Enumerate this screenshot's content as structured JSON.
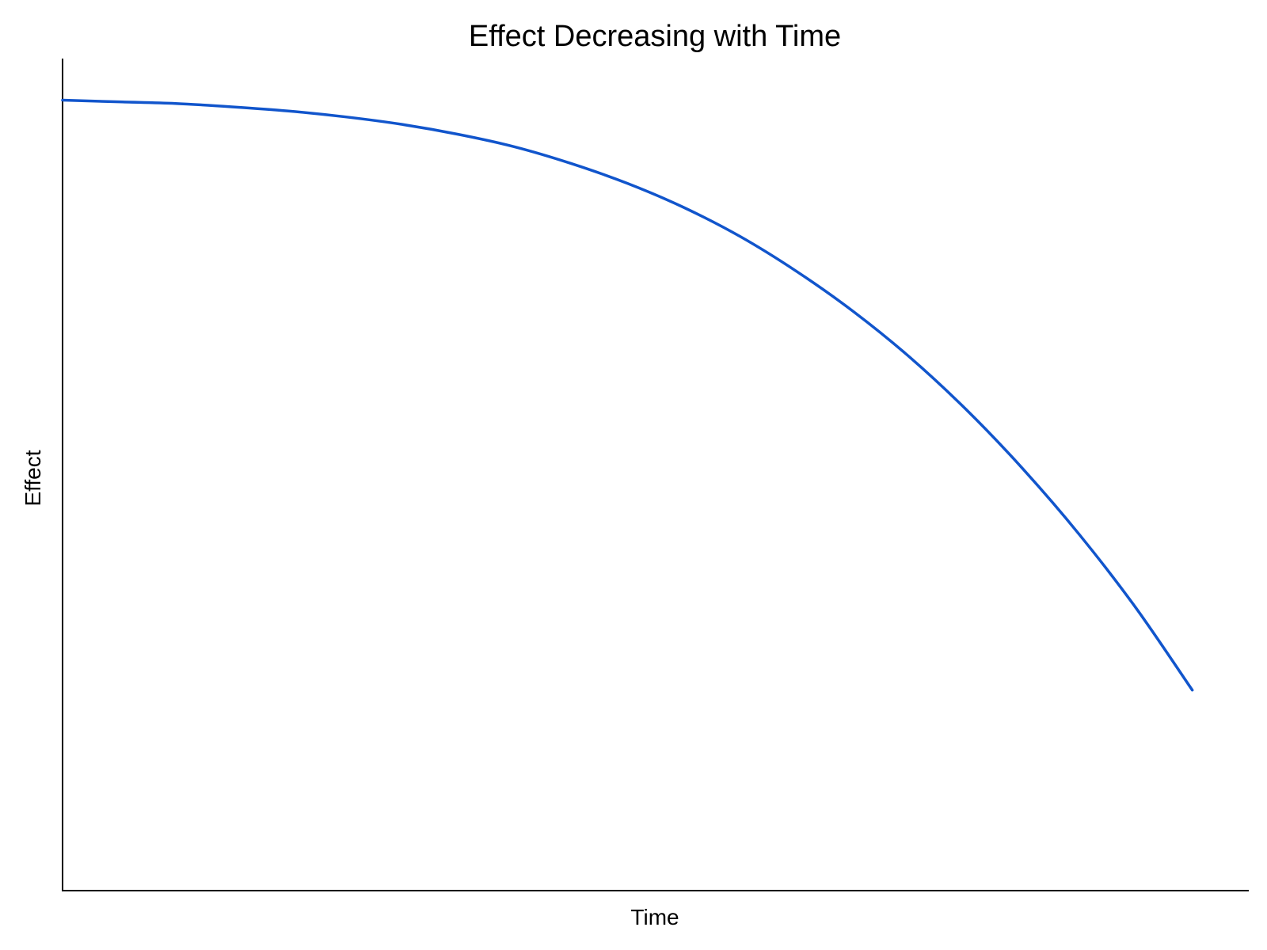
{
  "chart_data": {
    "type": "line",
    "title": "Effect Decreasing with Time",
    "xlabel": "Time",
    "ylabel": "Effect",
    "grid": false,
    "legend": "none",
    "xlim": [
      0,
      10.5
    ],
    "ylim": [
      0,
      100
    ],
    "series": [
      {
        "color": "#1155cc",
        "x": [
          0,
          0.5,
          1,
          1.5,
          2,
          2.5,
          3,
          3.5,
          4,
          4.5,
          5,
          5.5,
          6,
          6.5,
          7,
          7.5,
          8,
          8.5,
          9,
          9.5,
          10
        ],
        "y": [
          95.0,
          94.8,
          94.6,
          94.2,
          93.7,
          93.0,
          92.1,
          90.9,
          89.4,
          87.4,
          85.0,
          82.1,
          78.6,
          74.4,
          69.6,
          64.1,
          57.8,
          50.7,
          42.8,
          34.0,
          24.1
        ]
      }
    ]
  }
}
